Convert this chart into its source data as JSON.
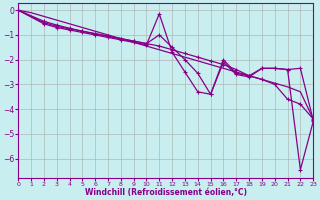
{
  "xlabel": "Windchill (Refroidissement éolien,°C)",
  "background_color": "#c8eef0",
  "grid_color": "#aaaaaa",
  "line_color": "#880088",
  "xlim": [
    0,
    23
  ],
  "ylim": [
    -6.8,
    0.3
  ],
  "yticks": [
    0,
    -1,
    -2,
    -3,
    -4,
    -5,
    -6
  ],
  "xticks": [
    0,
    1,
    2,
    3,
    4,
    5,
    6,
    7,
    8,
    9,
    10,
    11,
    12,
    13,
    14,
    15,
    16,
    17,
    18,
    19,
    20,
    21,
    22,
    23
  ],
  "line1_x": [
    0,
    1,
    2,
    3,
    4,
    5,
    6,
    7,
    8,
    9,
    10,
    11,
    12,
    13,
    14,
    15,
    16,
    17,
    18,
    19,
    20,
    21,
    22,
    23
  ],
  "line1_y": [
    0,
    -0.1,
    -0.25,
    -0.4,
    -0.55,
    -0.7,
    -0.85,
    -1.0,
    -1.15,
    -1.3,
    -1.45,
    -1.6,
    -1.75,
    -1.9,
    -2.05,
    -2.2,
    -2.35,
    -2.5,
    -2.65,
    -2.8,
    -2.95,
    -3.1,
    -3.3,
    -4.4
  ],
  "line2_x": [
    0,
    2,
    3,
    4,
    5,
    6,
    7,
    8,
    9,
    10,
    11,
    12,
    13,
    14,
    15,
    16,
    17,
    18,
    19,
    20,
    21,
    22,
    23
  ],
  "line2_y": [
    0,
    -0.5,
    -0.65,
    -0.75,
    -0.85,
    -0.95,
    -1.05,
    -1.15,
    -1.25,
    -1.35,
    -1.0,
    -1.5,
    -2.0,
    -2.55,
    -3.4,
    -2.0,
    -2.55,
    -2.65,
    -2.35,
    -2.35,
    -2.4,
    -2.35,
    -4.45
  ],
  "line3_x": [
    0,
    2,
    3,
    4,
    5,
    6,
    7,
    8,
    9,
    10,
    11,
    12,
    13,
    14,
    15,
    16,
    17,
    18,
    19,
    20,
    21,
    22,
    23
  ],
  "line3_y": [
    0,
    -0.55,
    -0.7,
    -0.8,
    -0.9,
    -1.0,
    -1.1,
    -1.2,
    -1.3,
    -1.4,
    -0.15,
    -1.7,
    -2.5,
    -3.3,
    -3.4,
    -2.1,
    -2.6,
    -2.7,
    -2.35,
    -2.35,
    -2.4,
    -6.45,
    -4.5
  ],
  "line4_x": [
    0,
    2,
    3,
    4,
    5,
    6,
    7,
    8,
    9,
    10,
    11,
    12,
    13,
    14,
    15,
    16,
    17,
    18,
    19,
    20,
    21,
    22,
    23
  ],
  "line4_y": [
    0,
    -0.45,
    -0.6,
    -0.73,
    -0.85,
    -0.95,
    -1.05,
    -1.15,
    -1.25,
    -1.35,
    -1.45,
    -1.6,
    -1.75,
    -1.9,
    -2.05,
    -2.2,
    -2.4,
    -2.65,
    -2.8,
    -3.0,
    -3.6,
    -3.8,
    -4.4
  ]
}
